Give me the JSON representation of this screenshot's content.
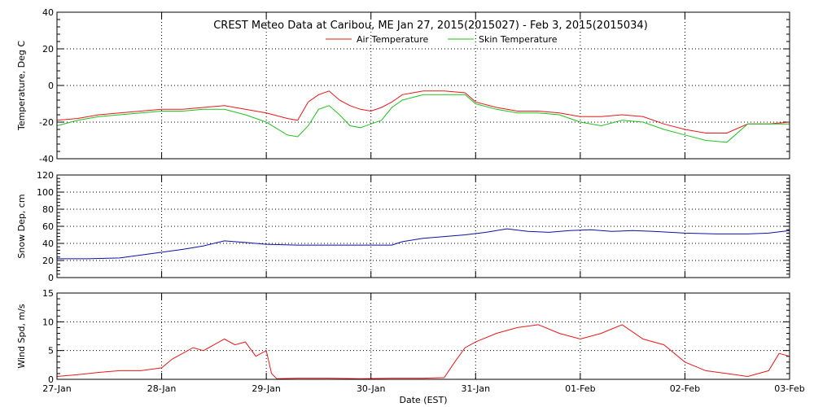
{
  "title": "CREST Meteo Data at Caribou, ME   Jan 27, 2015(2015027) - Feb  3, 2015(2015034)",
  "xlabel": "Date (EST)",
  "colors": {
    "air": "#e8181a",
    "skin": "#1fc21f",
    "snow": "#0a14a0",
    "wind": "#e8181a"
  },
  "chart_data": [
    {
      "type": "line",
      "ylabel": "Temperature, Deg C",
      "ylim": [
        -40,
        40
      ],
      "yticks": [
        "-40",
        "-20",
        "0",
        "20",
        "40"
      ],
      "xlim": [
        0,
        7
      ],
      "legend": "top-center",
      "grid": true,
      "series": [
        {
          "name": "Air Temperature",
          "color_key": "air",
          "x": [
            0,
            0.2,
            0.4,
            0.6,
            0.8,
            1.0,
            1.2,
            1.4,
            1.6,
            1.8,
            2.0,
            2.2,
            2.3,
            2.4,
            2.5,
            2.6,
            2.7,
            2.8,
            2.9,
            3.0,
            3.1,
            3.2,
            3.3,
            3.5,
            3.7,
            3.9,
            4.0,
            4.2,
            4.4,
            4.6,
            4.8,
            5.0,
            5.2,
            5.4,
            5.6,
            5.8,
            6.0,
            6.2,
            6.4,
            6.6,
            6.8,
            7.0
          ],
          "y": [
            -19,
            -18,
            -16,
            -15,
            -14,
            -13,
            -13,
            -12,
            -11,
            -13,
            -15,
            -18,
            -19,
            -9,
            -5,
            -3,
            -8,
            -11,
            -13,
            -14,
            -12,
            -9,
            -5,
            -3,
            -3,
            -4,
            -9,
            -12,
            -14,
            -14,
            -15,
            -17,
            -17,
            -16,
            -17,
            -21,
            -24,
            -26,
            -26,
            -21,
            -21,
            -20
          ]
        },
        {
          "name": "Skin Temperature",
          "color_key": "skin",
          "x": [
            0,
            0.2,
            0.4,
            0.6,
            0.8,
            1.0,
            1.2,
            1.4,
            1.6,
            1.8,
            2.0,
            2.2,
            2.3,
            2.4,
            2.5,
            2.6,
            2.7,
            2.8,
            2.9,
            3.0,
            3.1,
            3.2,
            3.3,
            3.5,
            3.7,
            3.9,
            4.0,
            4.2,
            4.4,
            4.6,
            4.8,
            5.0,
            5.2,
            5.4,
            5.6,
            5.8,
            6.0,
            6.2,
            6.4,
            6.6,
            6.8,
            7.0
          ],
          "y": [
            -22,
            -19,
            -17,
            -16,
            -15,
            -14,
            -14,
            -13,
            -13,
            -16,
            -20,
            -27,
            -28,
            -22,
            -13,
            -11,
            -16,
            -22,
            -23,
            -21,
            -19,
            -12,
            -8,
            -5,
            -5,
            -5,
            -10,
            -13,
            -15,
            -15,
            -16,
            -20,
            -22,
            -19,
            -20,
            -24,
            -27,
            -30,
            -31,
            -21,
            -21,
            -21
          ]
        }
      ]
    },
    {
      "type": "line",
      "ylabel": "Snow Dep, cm",
      "ylim": [
        0,
        120
      ],
      "yticks": [
        "0",
        "20",
        "40",
        "60",
        "80",
        "100",
        "120"
      ],
      "xlim": [
        0,
        7
      ],
      "grid": true,
      "series": [
        {
          "color_key": "snow",
          "x": [
            0,
            0.3,
            0.6,
            0.9,
            1.2,
            1.4,
            1.6,
            1.8,
            2.0,
            2.3,
            2.6,
            2.9,
            3.1,
            3.2,
            3.3,
            3.5,
            3.7,
            3.9,
            4.1,
            4.3,
            4.5,
            4.7,
            4.9,
            5.1,
            5.3,
            5.5,
            5.7,
            6.0,
            6.3,
            6.6,
            6.8,
            7.0
          ],
          "y": [
            22,
            22,
            23,
            28,
            33,
            37,
            43,
            41,
            39,
            38,
            38,
            38,
            38,
            38,
            42,
            46,
            48,
            50,
            53,
            57,
            54,
            53,
            55,
            56,
            54,
            55,
            54,
            52,
            51,
            51,
            52,
            55
          ]
        }
      ]
    },
    {
      "type": "line",
      "ylabel": "Wind Spd, m/s",
      "ylim": [
        0,
        15
      ],
      "yticks": [
        "0",
        "5",
        "10",
        "15"
      ],
      "xlim": [
        0,
        7
      ],
      "grid": true,
      "series": [
        {
          "color_key": "wind",
          "x": [
            0,
            0.2,
            0.4,
            0.6,
            0.8,
            1.0,
            1.1,
            1.2,
            1.3,
            1.4,
            1.5,
            1.6,
            1.7,
            1.8,
            1.9,
            2.0,
            2.05,
            2.1,
            2.3,
            2.6,
            2.9,
            3.2,
            3.5,
            3.7,
            3.8,
            3.9,
            4.0,
            4.2,
            4.4,
            4.6,
            4.8,
            5.0,
            5.2,
            5.4,
            5.6,
            5.8,
            6.0,
            6.2,
            6.4,
            6.6,
            6.8,
            6.9,
            7.0
          ],
          "y": [
            0.5,
            0.8,
            1.2,
            1.5,
            1.5,
            2.0,
            3.5,
            4.5,
            5.5,
            5.0,
            6.0,
            7.0,
            6.0,
            6.5,
            4.0,
            5.0,
            1.0,
            0.1,
            0.2,
            0.2,
            0.1,
            0.2,
            0.2,
            0.3,
            3.0,
            5.5,
            6.5,
            8.0,
            9.0,
            9.5,
            8.0,
            7.0,
            8.0,
            9.5,
            7.0,
            6.0,
            3.0,
            1.5,
            1.0,
            0.5,
            1.5,
            4.5,
            4.0
          ]
        }
      ]
    }
  ],
  "xticks": [
    "27-Jan",
    "28-Jan",
    "29-Jan",
    "30-Jan",
    "31-Jan",
    "01-Feb",
    "02-Feb",
    "03-Feb"
  ]
}
